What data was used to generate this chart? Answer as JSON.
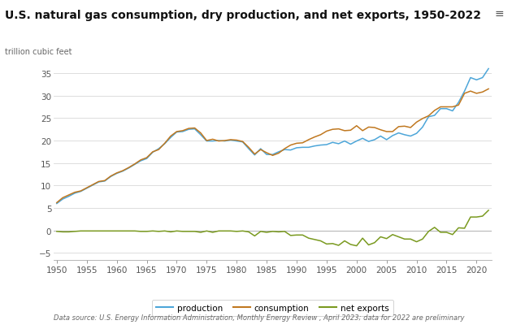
{
  "title": "U.S. natural gas consumption, dry production, and net exports, 1950-2022",
  "ylabel": "trillion cubic feet",
  "source": "Data source: U.S. Energy Information Administration, Monthly Energy Review , April 2023; data for 2022 are preliminary",
  "years": [
    1950,
    1951,
    1952,
    1953,
    1954,
    1955,
    1956,
    1957,
    1958,
    1959,
    1960,
    1961,
    1962,
    1963,
    1964,
    1965,
    1966,
    1967,
    1968,
    1969,
    1970,
    1971,
    1972,
    1973,
    1974,
    1975,
    1976,
    1977,
    1978,
    1979,
    1980,
    1981,
    1982,
    1983,
    1984,
    1985,
    1986,
    1987,
    1988,
    1989,
    1990,
    1991,
    1992,
    1993,
    1994,
    1995,
    1996,
    1997,
    1998,
    1999,
    2000,
    2001,
    2002,
    2003,
    2004,
    2005,
    2006,
    2007,
    2008,
    2009,
    2010,
    2011,
    2012,
    2013,
    2014,
    2015,
    2016,
    2017,
    2018,
    2019,
    2020,
    2021,
    2022
  ],
  "production": [
    6.0,
    7.0,
    7.6,
    8.3,
    8.7,
    9.4,
    10.1,
    10.8,
    11.0,
    12.0,
    12.7,
    13.2,
    13.9,
    14.7,
    15.5,
    16.0,
    17.4,
    18.2,
    19.3,
    20.7,
    21.9,
    22.0,
    22.5,
    22.6,
    21.3,
    19.9,
    19.9,
    20.0,
    19.9,
    20.1,
    19.9,
    19.7,
    18.2,
    16.8,
    18.2,
    16.9,
    16.9,
    17.5,
    18.0,
    17.9,
    18.4,
    18.5,
    18.5,
    18.8,
    19.0,
    19.1,
    19.6,
    19.3,
    19.9,
    19.2,
    19.9,
    20.5,
    19.8,
    20.2,
    21.0,
    20.2,
    21.1,
    21.7,
    21.3,
    21.0,
    21.6,
    23.0,
    25.3,
    25.6,
    27.1,
    27.1,
    26.6,
    28.5,
    31.0,
    34.0,
    33.5,
    34.0,
    36.0
  ],
  "consumption": [
    6.2,
    7.3,
    7.9,
    8.5,
    8.8,
    9.5,
    10.2,
    10.9,
    11.1,
    12.1,
    12.8,
    13.3,
    14.0,
    14.8,
    15.7,
    16.2,
    17.5,
    18.0,
    19.4,
    21.0,
    22.0,
    22.2,
    22.7,
    22.8,
    21.7,
    20.0,
    20.3,
    19.9,
    20.0,
    20.2,
    20.1,
    19.8,
    18.5,
    17.0,
    18.0,
    17.3,
    16.7,
    17.2,
    18.2,
    19.0,
    19.4,
    19.5,
    20.2,
    20.8,
    21.3,
    22.1,
    22.5,
    22.6,
    22.2,
    22.3,
    23.3,
    22.2,
    23.0,
    22.9,
    22.4,
    22.0,
    22.0,
    23.1,
    23.2,
    22.9,
    24.1,
    24.9,
    25.5,
    26.7,
    27.5,
    27.5,
    27.5,
    27.9,
    30.5,
    31.0,
    30.5,
    30.8,
    31.5
  ],
  "net_exports": [
    -0.2,
    -0.3,
    -0.3,
    -0.2,
    -0.1,
    -0.1,
    -0.1,
    -0.1,
    -0.1,
    -0.1,
    -0.1,
    -0.1,
    -0.1,
    -0.1,
    -0.2,
    -0.2,
    -0.1,
    -0.2,
    -0.1,
    -0.3,
    -0.1,
    -0.2,
    -0.2,
    -0.2,
    -0.4,
    -0.1,
    -0.4,
    -0.1,
    -0.1,
    -0.1,
    -0.2,
    -0.1,
    -0.3,
    -1.2,
    -0.2,
    -0.4,
    -0.2,
    -0.3,
    -0.2,
    -1.1,
    -1.0,
    -1.0,
    -1.7,
    -2.0,
    -2.3,
    -3.0,
    -2.9,
    -3.3,
    -2.3,
    -3.1,
    -3.4,
    -1.7,
    -3.2,
    -2.7,
    -1.4,
    -1.8,
    -0.9,
    -1.4,
    -1.9,
    -1.9,
    -2.5,
    -1.9,
    -0.2,
    0.7,
    -0.4,
    -0.4,
    -0.9,
    0.6,
    0.5,
    3.0,
    3.0,
    3.2,
    4.5
  ],
  "production_color": "#4da6d9",
  "consumption_color": "#c07820",
  "net_exports_color": "#7a9a20",
  "background_color": "#ffffff",
  "grid_color": "#d8d8d8",
  "title_fontsize": 10,
  "label_fontsize": 7.5,
  "legend_fontsize": 7.5,
  "source_fontsize": 6.0,
  "ylim": [
    -6.5,
    37.5
  ],
  "yticks": [
    -5,
    0,
    5,
    10,
    15,
    20,
    25,
    30,
    35
  ],
  "xlim": [
    1949.5,
    2022.5
  ],
  "xticks": [
    1950,
    1955,
    1960,
    1965,
    1970,
    1975,
    1980,
    1985,
    1990,
    1995,
    2000,
    2005,
    2010,
    2015,
    2020
  ]
}
